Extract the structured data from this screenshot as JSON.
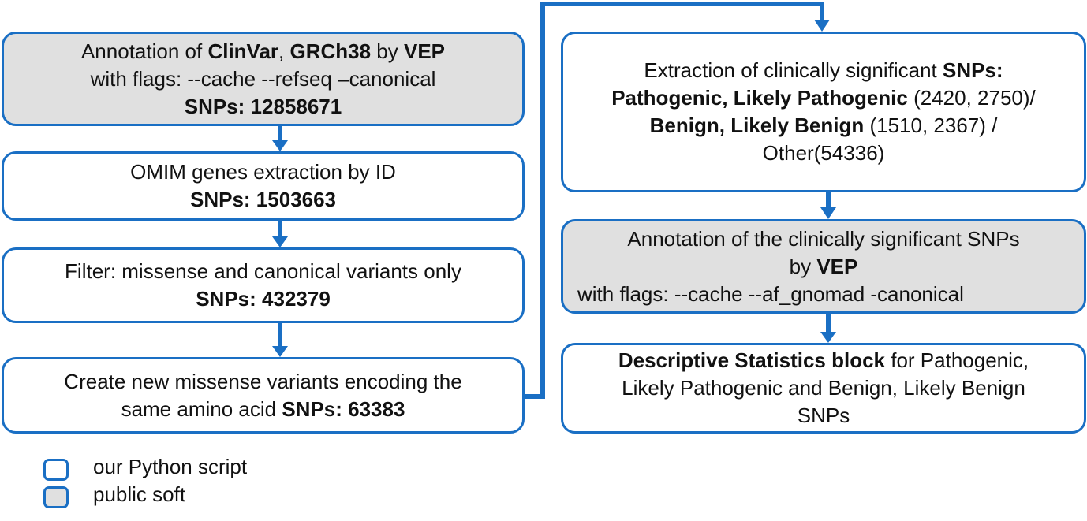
{
  "colors": {
    "accent": "#1a6fc4",
    "gray_fill": "#e0e0e0",
    "white_fill": "#ffffff"
  },
  "boxes": {
    "b1": {
      "t1": "Annotation of ",
      "b1": "ClinVar",
      "t2": ", ",
      "b2": "GRCh38",
      "t3": "  by ",
      "b3": "VEP",
      "l2": "with flags: --cache --refseq –canonical",
      "l3": "SNPs: 12858671"
    },
    "b2": {
      "l1": "OMIM genes extraction by ID",
      "l2": "SNPs: 1503663"
    },
    "b3": {
      "l1": "Filter: missense and canonical variants only",
      "l2": "SNPs: 432379"
    },
    "b4": {
      "l1": "Create  new missense variants encoding the",
      "l2t": "same amino acid ",
      "l2b": "SNPs: 63383"
    },
    "b5": {
      "l1t": "Extraction of clinically significant ",
      "l1b": "SNPs:",
      "l2b": "Pathogenic, Likely Pathogenic",
      "l2t": " (2420, 2750)/",
      "l3b": "Benign, Likely Benign",
      "l3t": " (1510, 2367) /",
      "l4": "Other(54336)"
    },
    "b6": {
      "l1": "Annotation of the clinically significant SNPs",
      "l2t": "by ",
      "l2b": "VEP",
      "l3": "with flags: --cache --af_gnomad -canonical"
    },
    "b7": {
      "l1b": "Descriptive Statistics block",
      "l1t": " for Pathogenic,",
      "l2": "Likely Pathogenic and Benign, Likely Benign",
      "l3": "SNPs"
    }
  },
  "legend": {
    "python": "our Python script",
    "public": "public soft"
  }
}
